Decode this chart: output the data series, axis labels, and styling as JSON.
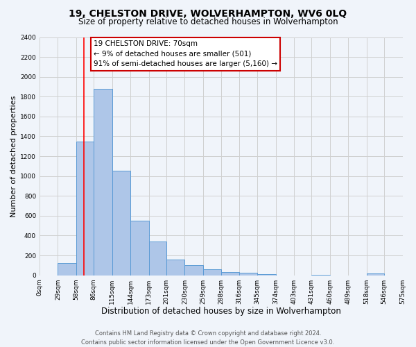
{
  "title": "19, CHELSTON DRIVE, WOLVERHAMPTON, WV6 0LQ",
  "subtitle": "Size of property relative to detached houses in Wolverhampton",
  "xlabel": "Distribution of detached houses by size in Wolverhampton",
  "ylabel": "Number of detached properties",
  "bin_edges": [
    0,
    29,
    58,
    86,
    115,
    144,
    173,
    201,
    230,
    259,
    288,
    316,
    345,
    374,
    403,
    431,
    460,
    489,
    518,
    546,
    575
  ],
  "bar_heights": [
    0,
    125,
    1350,
    1880,
    1050,
    550,
    340,
    160,
    105,
    60,
    30,
    25,
    10,
    0,
    0,
    5,
    0,
    0,
    20,
    0
  ],
  "bar_color": "#aec6e8",
  "bar_edge_color": "#5b9bd5",
  "grid_color": "#d0d0d0",
  "background_color": "#f0f4fa",
  "red_line_x": 70,
  "annotation_title": "19 CHELSTON DRIVE: 70sqm",
  "annotation_line1": "← 9% of detached houses are smaller (501)",
  "annotation_line2": "91% of semi-detached houses are larger (5,160) →",
  "annotation_box_color": "#ffffff",
  "annotation_box_edge": "#cc0000",
  "ylim": [
    0,
    2400
  ],
  "yticks": [
    0,
    200,
    400,
    600,
    800,
    1000,
    1200,
    1400,
    1600,
    1800,
    2000,
    2200,
    2400
  ],
  "tick_labels": [
    "0sqm",
    "29sqm",
    "58sqm",
    "86sqm",
    "115sqm",
    "144sqm",
    "173sqm",
    "201sqm",
    "230sqm",
    "259sqm",
    "288sqm",
    "316sqm",
    "345sqm",
    "374sqm",
    "403sqm",
    "431sqm",
    "460sqm",
    "489sqm",
    "518sqm",
    "546sqm",
    "575sqm"
  ],
  "footer_line1": "Contains HM Land Registry data © Crown copyright and database right 2024.",
  "footer_line2": "Contains public sector information licensed under the Open Government Licence v3.0.",
  "title_fontsize": 10,
  "subtitle_fontsize": 8.5,
  "xlabel_fontsize": 8.5,
  "ylabel_fontsize": 8,
  "tick_fontsize": 6.5,
  "footer_fontsize": 6,
  "annotation_fontsize": 7.5
}
